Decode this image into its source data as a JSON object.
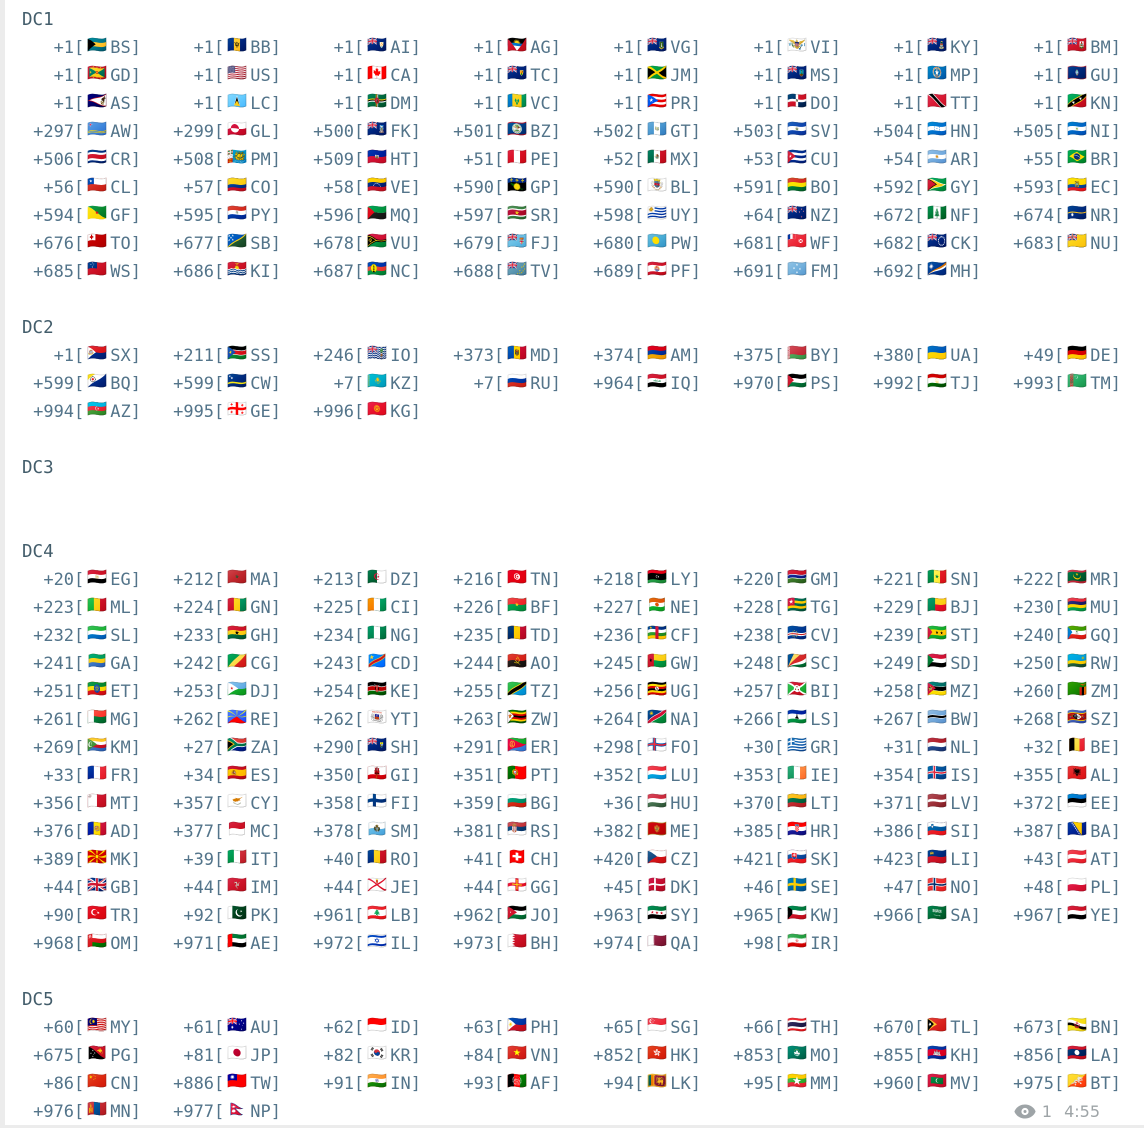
{
  "theme": {
    "bg": "#ffffff",
    "edge": "#ececec",
    "header_color": "#435d6b",
    "entry_color": "#53748a",
    "meta_color": "#9ea4a7"
  },
  "flag_icon_rule": "country-flag-icon derived as regional-indicator emoji from the two-letter country code",
  "sections": [
    {
      "label": "DC1",
      "entries": [
        "+1 BS",
        "+1 BB",
        "+1 AI",
        "+1 AG",
        "+1 VG",
        "+1 VI",
        "+1 KY",
        "+1 BM",
        "+1 GD",
        "+1 US",
        "+1 CA",
        "+1 TC",
        "+1 JM",
        "+1 MS",
        "+1 MP",
        "+1 GU",
        "+1 AS",
        "+1 LC",
        "+1 DM",
        "+1 VC",
        "+1 PR",
        "+1 DO",
        "+1 TT",
        "+1 KN",
        "+297 AW",
        "+299 GL",
        "+500 FK",
        "+501 BZ",
        "+502 GT",
        "+503 SV",
        "+504 HN",
        "+505 NI",
        "+506 CR",
        "+508 PM",
        "+509 HT",
        "+51 PE",
        "+52 MX",
        "+53 CU",
        "+54 AR",
        "+55 BR",
        "+56 CL",
        "+57 CO",
        "+58 VE",
        "+590 GP",
        "+590 BL",
        "+591 BO",
        "+592 GY",
        "+593 EC",
        "+594 GF",
        "+595 PY",
        "+596 MQ",
        "+597 SR",
        "+598 UY",
        "+64 NZ",
        "+672 NF",
        "+674 NR",
        "+676 TO",
        "+677 SB",
        "+678 VU",
        "+679 FJ",
        "+680 PW",
        "+681 WF",
        "+682 CK",
        "+683 NU",
        "+685 WS",
        "+686 KI",
        "+687 NC",
        "+688 TV",
        "+689 PF",
        "+691 FM",
        "+692 MH"
      ]
    },
    {
      "label": "DC2",
      "entries": [
        "+1 SX",
        "+211 SS",
        "+246 IO",
        "+373 MD",
        "+374 AM",
        "+375 BY",
        "+380 UA",
        "+49 DE",
        "+599 BQ",
        "+599 CW",
        "+7 KZ",
        "+7 RU",
        "+964 IQ",
        "+970 PS",
        "+992 TJ",
        "+993 TM",
        "+994 AZ",
        "+995 GE",
        "+996 KG"
      ]
    },
    {
      "label": "DC3",
      "entries": []
    },
    {
      "label": "DC4",
      "entries": [
        "+20 EG",
        "+212 MA",
        "+213 DZ",
        "+216 TN",
        "+218 LY",
        "+220 GM",
        "+221 SN",
        "+222 MR",
        "+223 ML",
        "+224 GN",
        "+225 CI",
        "+226 BF",
        "+227 NE",
        "+228 TG",
        "+229 BJ",
        "+230 MU",
        "+232 SL",
        "+233 GH",
        "+234 NG",
        "+235 TD",
        "+236 CF",
        "+238 CV",
        "+239 ST",
        "+240 GQ",
        "+241 GA",
        "+242 CG",
        "+243 CD",
        "+244 AO",
        "+245 GW",
        "+248 SC",
        "+249 SD",
        "+250 RW",
        "+251 ET",
        "+253 DJ",
        "+254 KE",
        "+255 TZ",
        "+256 UG",
        "+257 BI",
        "+258 MZ",
        "+260 ZM",
        "+261 MG",
        "+262 RE",
        "+262 YT",
        "+263 ZW",
        "+264 NA",
        "+266 LS",
        "+267 BW",
        "+268 SZ",
        "+269 KM",
        "+27 ZA",
        "+290 SH",
        "+291 ER",
        "+298 FO",
        "+30 GR",
        "+31 NL",
        "+32 BE",
        "+33 FR",
        "+34 ES",
        "+350 GI",
        "+351 PT",
        "+352 LU",
        "+353 IE",
        "+354 IS",
        "+355 AL",
        "+356 MT",
        "+357 CY",
        "+358 FI",
        "+359 BG",
        "+36 HU",
        "+370 LT",
        "+371 LV",
        "+372 EE",
        "+376 AD",
        "+377 MC",
        "+378 SM",
        "+381 RS",
        "+382 ME",
        "+385 HR",
        "+386 SI",
        "+387 BA",
        "+389 MK",
        "+39 IT",
        "+40 RO",
        "+41 CH",
        "+420 CZ",
        "+421 SK",
        "+423 LI",
        "+43 AT",
        "+44 GB",
        "+44 IM",
        "+44 JE",
        "+44 GG",
        "+45 DK",
        "+46 SE",
        "+47 NO",
        "+48 PL",
        "+90 TR",
        "+92 PK",
        "+961 LB",
        "+962 JO",
        "+963 SY",
        "+965 KW",
        "+966 SA",
        "+967 YE",
        "+968 OM",
        "+971 AE",
        "+972 IL",
        "+973 BH",
        "+974 QA",
        "+98 IR"
      ]
    },
    {
      "label": "DC5",
      "entries": [
        "+60 MY",
        "+61 AU",
        "+62 ID",
        "+63 PH",
        "+65 SG",
        "+66 TH",
        "+670 TL",
        "+673 BN",
        "+675 PG",
        "+81 JP",
        "+82 KR",
        "+84 VN",
        "+852 HK",
        "+853 MO",
        "+855 KH",
        "+856 LA",
        "+86 CN",
        "+886 TW",
        "+91 IN",
        "+93 AF",
        "+94 LK",
        "+95 MM",
        "+960 MV",
        "+975 BT",
        "+976 MN",
        "+977 NP"
      ]
    }
  ],
  "footer": {
    "views_icon": "eye-icon",
    "views": "1",
    "time": "4:55"
  }
}
